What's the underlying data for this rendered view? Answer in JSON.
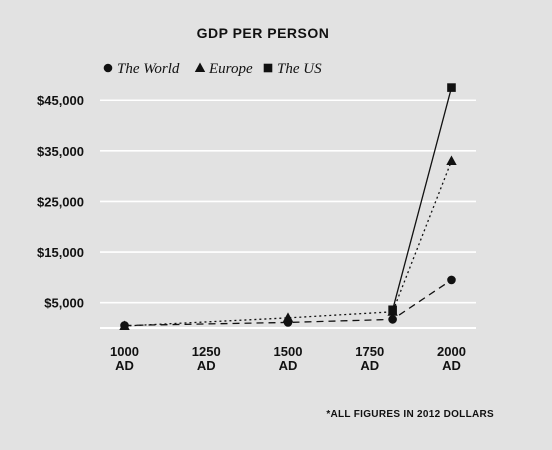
{
  "chart_data": {
    "type": "line",
    "title": "GDP PER PERSON",
    "footnote": "*ALL FIGURES IN 2012 DOLLARS",
    "x_ticks": [
      {
        "value": 1000,
        "line1": "1000",
        "line2": "AD"
      },
      {
        "value": 1250,
        "line1": "1250",
        "line2": "AD"
      },
      {
        "value": 1500,
        "line1": "1500",
        "line2": "AD"
      },
      {
        "value": 1750,
        "line1": "1750",
        "line2": "AD"
      },
      {
        "value": 2000,
        "line1": "2000",
        "line2": "AD"
      }
    ],
    "y_ticks": [
      {
        "value": 5000,
        "label": "$5,000"
      },
      {
        "value": 15000,
        "label": "$15,000"
      },
      {
        "value": 25000,
        "label": "$25,000"
      },
      {
        "value": 35000,
        "label": "$35,000"
      },
      {
        "value": 45000,
        "label": "$45,000"
      }
    ],
    "xlim": [
      925,
      2075
    ],
    "ylim": [
      0,
      49000
    ],
    "grid": "horizontal",
    "legend_position": "top",
    "series": [
      {
        "name": "The World",
        "marker": "circle",
        "dash": "7,5",
        "color": "#111111",
        "x": [
          1000,
          1500,
          1820,
          2000
        ],
        "y": [
          500,
          1100,
          1700,
          9500
        ]
      },
      {
        "name": "Europe",
        "marker": "triangle",
        "dash": "2,3",
        "color": "#111111",
        "x": [
          1000,
          1500,
          1820,
          2000
        ],
        "y": [
          400,
          2000,
          3200,
          33000
        ]
      },
      {
        "name": "The US",
        "marker": "square",
        "dash": "",
        "color": "#111111",
        "x": [
          1820,
          2000
        ],
        "y": [
          3600,
          47500
        ]
      }
    ]
  }
}
